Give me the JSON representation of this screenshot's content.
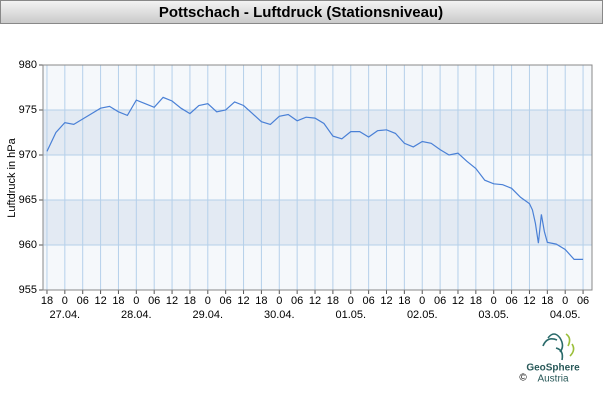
{
  "chart_data": {
    "type": "line",
    "title": "Pottschach - Luftdruck (Stationsniveau)",
    "y_label": "Luftdruck in hPa",
    "ylim": [
      955,
      980
    ],
    "yticks": [
      955,
      960,
      965,
      970,
      975,
      980
    ],
    "xlim": [
      "26.04. 16:40",
      "04.05. 09:00"
    ],
    "xticks": [
      {
        "value": "26.04. 18:00",
        "label": "18"
      },
      {
        "value": "27.04. 00:00",
        "label": "0"
      },
      {
        "value": "27.04. 06:00",
        "label": "06"
      },
      {
        "value": "27.04. 12:00",
        "label": "12"
      },
      {
        "value": "27.04. 18:00",
        "label": "18"
      },
      {
        "value": "28.04. 00:00",
        "label": "0"
      },
      {
        "value": "28.04. 06:00",
        "label": "06"
      },
      {
        "value": "28.04. 12:00",
        "label": "12"
      },
      {
        "value": "28.04. 18:00",
        "label": "18"
      },
      {
        "value": "29.04. 00:00",
        "label": "0"
      },
      {
        "value": "29.04. 06:00",
        "label": "06"
      },
      {
        "value": "29.04. 12:00",
        "label": "12"
      },
      {
        "value": "29.04. 18:00",
        "label": "18"
      },
      {
        "value": "30.04. 00:00",
        "label": "0"
      },
      {
        "value": "30.04. 06:00",
        "label": "06"
      },
      {
        "value": "30.04. 12:00",
        "label": "12"
      },
      {
        "value": "30.04. 18:00",
        "label": "18"
      },
      {
        "value": "01.05. 00:00",
        "label": "0"
      },
      {
        "value": "01.05. 06:00",
        "label": "06"
      },
      {
        "value": "01.05. 12:00",
        "label": "12"
      },
      {
        "value": "01.05. 18:00",
        "label": "18"
      },
      {
        "value": "02.05. 00:00",
        "label": "0"
      },
      {
        "value": "02.05. 06:00",
        "label": "06"
      },
      {
        "value": "02.05. 12:00",
        "label": "12"
      },
      {
        "value": "02.05. 18:00",
        "label": "18"
      },
      {
        "value": "03.05. 00:00",
        "label": "0"
      },
      {
        "value": "03.05. 06:00",
        "label": "06"
      },
      {
        "value": "03.05. 12:00",
        "label": "12"
      },
      {
        "value": "03.05. 18:00",
        "label": "18"
      },
      {
        "value": "04.05. 00:00",
        "label": "0"
      },
      {
        "value": "04.05. 06:00",
        "label": "06"
      }
    ],
    "date_labels": [
      {
        "value": "27.04. 00:00",
        "label": "27.04."
      },
      {
        "value": "28.04. 00:00",
        "label": "28.04."
      },
      {
        "value": "29.04. 00:00",
        "label": "29.04."
      },
      {
        "value": "30.04. 00:00",
        "label": "30.04."
      },
      {
        "value": "01.05. 00:00",
        "label": "01.05."
      },
      {
        "value": "02.05. 00:00",
        "label": "02.05."
      },
      {
        "value": "03.05. 00:00",
        "label": "03.05."
      },
      {
        "value": "04.05. 00:00",
        "label": "04.05."
      }
    ],
    "grid": true,
    "color": "#4a80d6",
    "x": [
      "26.04. 18:00",
      "26.04. 21:00",
      "27.04. 00:00",
      "27.04. 03:00",
      "27.04. 06:00",
      "27.04. 09:00",
      "27.04. 12:00",
      "27.04. 15:00",
      "27.04. 18:00",
      "27.04. 21:00",
      "28.04. 00:00",
      "28.04. 03:00",
      "28.04. 06:00",
      "28.04. 09:00",
      "28.04. 12:00",
      "28.04. 15:00",
      "28.04. 18:00",
      "28.04. 21:00",
      "29.04. 00:00",
      "29.04. 03:00",
      "29.04. 06:00",
      "29.04. 09:00",
      "29.04. 12:00",
      "29.04. 15:00",
      "29.04. 18:00",
      "29.04. 21:00",
      "30.04. 00:00",
      "30.04. 03:00",
      "30.04. 06:00",
      "30.04. 09:00",
      "30.04. 12:00",
      "30.04. 15:00",
      "30.04. 18:00",
      "30.04. 21:00",
      "01.05. 00:00",
      "01.05. 03:00",
      "01.05. 06:00",
      "01.05. 09:00",
      "01.05. 12:00",
      "01.05. 15:00",
      "01.05. 18:00",
      "01.05. 21:00",
      "02.05. 00:00",
      "02.05. 03:00",
      "02.05. 06:00",
      "02.05. 09:00",
      "02.05. 12:00",
      "02.05. 15:00",
      "02.05. 18:00",
      "02.05. 21:00",
      "03.05. 00:00",
      "03.05. 03:00",
      "03.05. 06:00",
      "03.05. 09:00",
      "03.05. 12:00",
      "03.05. 13:00",
      "03.05. 14:00",
      "03.05. 15:00",
      "03.05. 16:00",
      "03.05. 17:00",
      "03.05. 18:00",
      "03.05. 21:00",
      "04.05. 00:00",
      "04.05. 03:00",
      "04.05. 06:00"
    ],
    "values": [
      970.4,
      972.5,
      973.6,
      973.4,
      974.0,
      974.6,
      975.2,
      975.4,
      974.8,
      974.4,
      976.1,
      975.7,
      975.3,
      976.4,
      976.0,
      975.2,
      974.6,
      975.5,
      975.7,
      974.8,
      975.0,
      975.9,
      975.5,
      974.6,
      973.7,
      973.4,
      974.3,
      974.5,
      973.8,
      974.2,
      974.1,
      973.5,
      972.1,
      971.8,
      972.6,
      972.6,
      972.0,
      972.7,
      972.8,
      972.4,
      971.3,
      970.9,
      971.5,
      971.3,
      970.6,
      970.0,
      970.2,
      969.3,
      968.5,
      967.2,
      966.8,
      966.7,
      966.3,
      965.3,
      964.6,
      963.9,
      962.4,
      960.2,
      963.4,
      961.5,
      960.3,
      960.1,
      959.5,
      958.4,
      958.4
    ],
    "logo": {
      "name": "GeoSphere",
      "sub": "Austria",
      "copyright": "©"
    }
  }
}
